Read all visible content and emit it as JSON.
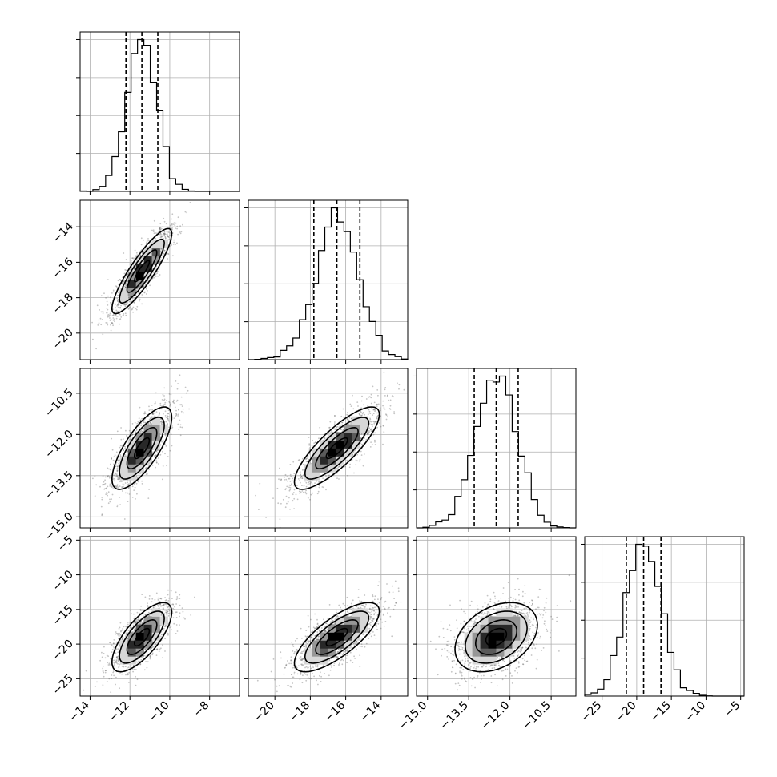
{
  "chart_data": {
    "type": "corner",
    "title": "",
    "grid": true,
    "parameters": [
      {
        "range": [
          -14.5,
          -6.5
        ],
        "ticks": [
          -14,
          -12,
          -10,
          -8
        ],
        "tick_labels": [
          "−14",
          "−12",
          "−10",
          "−8"
        ],
        "mean": -11.4,
        "sd": 0.75,
        "quantiles": [
          -12.2,
          -11.4,
          -10.6
        ]
      },
      {
        "range": [
          -21.5,
          -12.5
        ],
        "ticks": [
          -20,
          -18,
          -16,
          -14
        ],
        "tick_labels": [
          "−20",
          "−18",
          "−16",
          "−14"
        ],
        "mean": -16.5,
        "sd": 1.2,
        "quantiles": [
          -17.8,
          -16.5,
          -15.2
        ]
      },
      {
        "range": [
          -15.4,
          -9.6
        ],
        "ticks": [
          -15.0,
          -13.5,
          -12.0,
          -10.5
        ],
        "tick_labels": [
          "−15.0",
          "−13.5",
          "−12.0",
          "−10.5"
        ],
        "mean": -12.5,
        "sd": 0.75,
        "quantiles": [
          -13.3,
          -12.5,
          -11.7
        ]
      },
      {
        "range": [
          -27.5,
          -4.5
        ],
        "ticks": [
          -25,
          -20,
          -15,
          -10,
          -5
        ],
        "tick_labels": [
          "−25",
          "−20",
          "−15",
          "−10",
          "−5"
        ],
        "mean": -19.0,
        "sd": 2.5,
        "quantiles": [
          -21.5,
          -19.0,
          -16.5
        ]
      }
    ],
    "pairs": [
      {
        "x": 0,
        "y": 1,
        "rho": 0.88
      },
      {
        "x": 0,
        "y": 2,
        "rho": 0.75
      },
      {
        "x": 1,
        "y": 2,
        "rho": 0.82
      },
      {
        "x": 0,
        "y": 3,
        "rho": 0.72
      },
      {
        "x": 1,
        "y": 3,
        "rho": 0.75
      },
      {
        "x": 2,
        "y": 3,
        "rho": 0.35
      }
    ]
  }
}
